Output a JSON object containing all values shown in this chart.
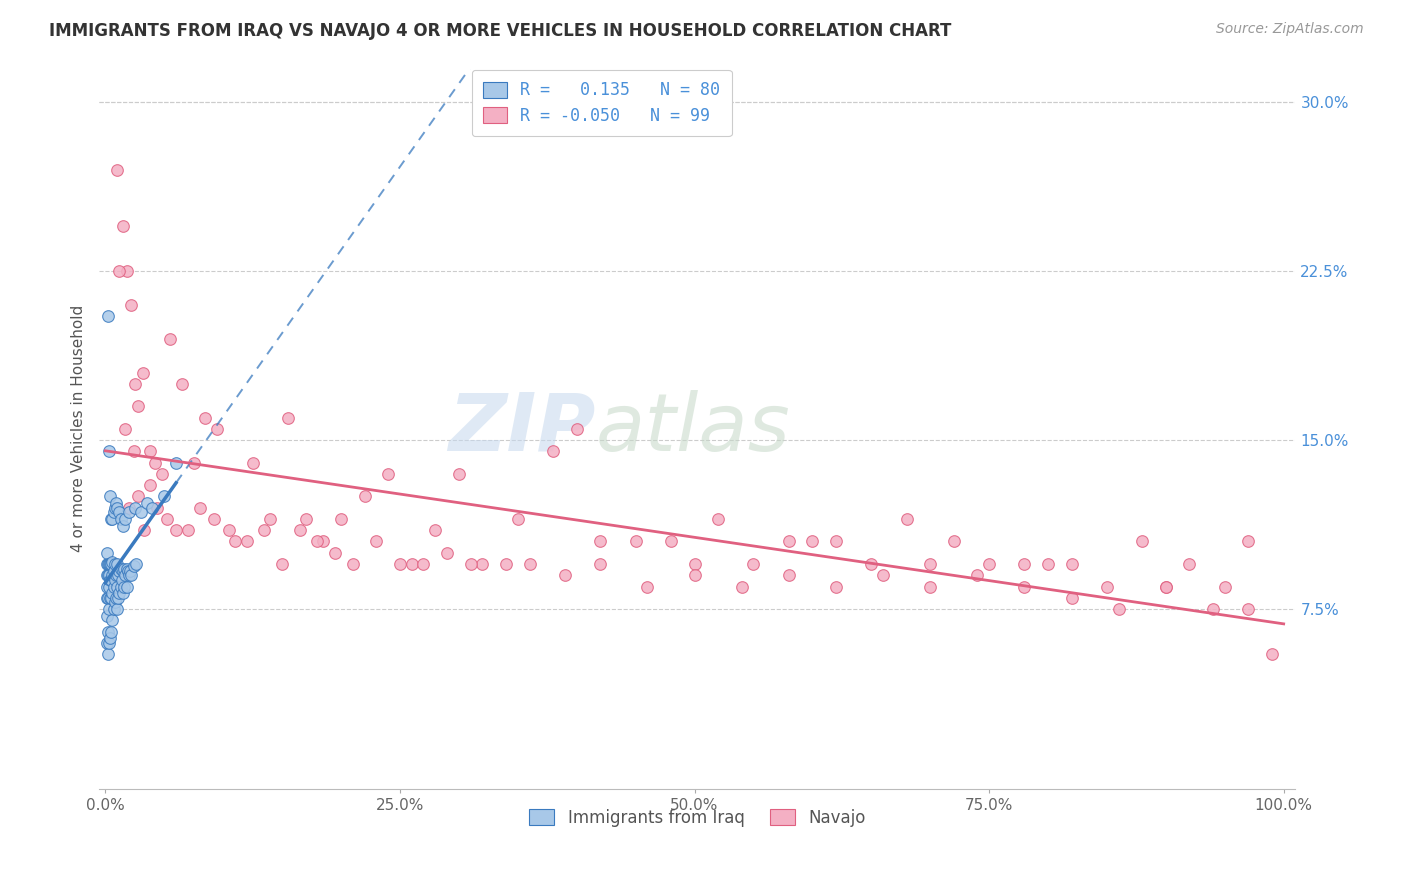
{
  "title": "IMMIGRANTS FROM IRAQ VS NAVAJO 4 OR MORE VEHICLES IN HOUSEHOLD CORRELATION CHART",
  "source": "Source: ZipAtlas.com",
  "ylabel": "4 or more Vehicles in Household",
  "ytick_vals": [
    0.075,
    0.15,
    0.225,
    0.3
  ],
  "legend1_label": "Immigrants from Iraq",
  "legend2_label": "Navajo",
  "r1": 0.135,
  "n1": 80,
  "r2": -0.05,
  "n2": 99,
  "color_iraq": "#a8c8e8",
  "color_navajo": "#f4b0c4",
  "color_iraq_line": "#3a7abf",
  "color_navajo_line": "#e06080",
  "watermark_zip": "ZIP",
  "watermark_atlas": "atlas",
  "background_color": "#ffffff",
  "iraq_x": [
    0.001,
    0.001,
    0.001,
    0.001,
    0.001,
    0.001,
    0.001,
    0.002,
    0.002,
    0.002,
    0.002,
    0.002,
    0.003,
    0.003,
    0.003,
    0.003,
    0.003,
    0.004,
    0.004,
    0.004,
    0.004,
    0.005,
    0.005,
    0.005,
    0.005,
    0.006,
    0.006,
    0.006,
    0.006,
    0.007,
    0.007,
    0.007,
    0.008,
    0.008,
    0.008,
    0.009,
    0.009,
    0.01,
    0.01,
    0.01,
    0.011,
    0.011,
    0.012,
    0.012,
    0.013,
    0.013,
    0.014,
    0.015,
    0.015,
    0.016,
    0.016,
    0.017,
    0.018,
    0.018,
    0.019,
    0.02,
    0.021,
    0.022,
    0.024,
    0.026,
    0.002,
    0.003,
    0.004,
    0.005,
    0.006,
    0.007,
    0.008,
    0.009,
    0.01,
    0.012,
    0.013,
    0.015,
    0.017,
    0.02,
    0.025,
    0.03,
    0.035,
    0.04,
    0.05,
    0.06
  ],
  "iraq_y": [
    0.06,
    0.072,
    0.08,
    0.085,
    0.09,
    0.095,
    0.1,
    0.055,
    0.065,
    0.08,
    0.09,
    0.095,
    0.06,
    0.075,
    0.085,
    0.09,
    0.095,
    0.062,
    0.08,
    0.088,
    0.095,
    0.065,
    0.08,
    0.088,
    0.095,
    0.07,
    0.082,
    0.09,
    0.096,
    0.075,
    0.085,
    0.092,
    0.078,
    0.088,
    0.095,
    0.08,
    0.09,
    0.075,
    0.085,
    0.095,
    0.08,
    0.09,
    0.082,
    0.092,
    0.085,
    0.093,
    0.088,
    0.082,
    0.092,
    0.085,
    0.093,
    0.09,
    0.085,
    0.093,
    0.092,
    0.09,
    0.092,
    0.09,
    0.094,
    0.095,
    0.205,
    0.145,
    0.125,
    0.115,
    0.115,
    0.118,
    0.12,
    0.122,
    0.12,
    0.118,
    0.115,
    0.112,
    0.115,
    0.118,
    0.12,
    0.118,
    0.122,
    0.12,
    0.125,
    0.14
  ],
  "navajo_x": [
    0.01,
    0.015,
    0.018,
    0.022,
    0.025,
    0.028,
    0.032,
    0.038,
    0.042,
    0.048,
    0.055,
    0.065,
    0.075,
    0.085,
    0.095,
    0.11,
    0.125,
    0.14,
    0.155,
    0.17,
    0.185,
    0.2,
    0.22,
    0.24,
    0.26,
    0.28,
    0.3,
    0.32,
    0.35,
    0.38,
    0.4,
    0.42,
    0.45,
    0.48,
    0.5,
    0.52,
    0.55,
    0.58,
    0.6,
    0.62,
    0.65,
    0.68,
    0.7,
    0.72,
    0.75,
    0.78,
    0.8,
    0.82,
    0.85,
    0.88,
    0.9,
    0.92,
    0.95,
    0.97,
    0.012,
    0.017,
    0.02,
    0.024,
    0.028,
    0.033,
    0.038,
    0.044,
    0.052,
    0.06,
    0.07,
    0.08,
    0.092,
    0.105,
    0.12,
    0.135,
    0.15,
    0.165,
    0.18,
    0.195,
    0.21,
    0.23,
    0.25,
    0.27,
    0.29,
    0.31,
    0.34,
    0.36,
    0.39,
    0.42,
    0.46,
    0.5,
    0.54,
    0.58,
    0.62,
    0.66,
    0.7,
    0.74,
    0.78,
    0.82,
    0.86,
    0.9,
    0.94,
    0.97,
    0.99
  ],
  "navajo_y": [
    0.27,
    0.245,
    0.225,
    0.21,
    0.175,
    0.165,
    0.18,
    0.145,
    0.14,
    0.135,
    0.195,
    0.175,
    0.14,
    0.16,
    0.155,
    0.105,
    0.14,
    0.115,
    0.16,
    0.115,
    0.105,
    0.115,
    0.125,
    0.135,
    0.095,
    0.11,
    0.135,
    0.095,
    0.115,
    0.145,
    0.155,
    0.105,
    0.105,
    0.105,
    0.095,
    0.115,
    0.095,
    0.105,
    0.105,
    0.105,
    0.095,
    0.115,
    0.095,
    0.105,
    0.095,
    0.095,
    0.095,
    0.095,
    0.085,
    0.105,
    0.085,
    0.095,
    0.085,
    0.105,
    0.225,
    0.155,
    0.12,
    0.145,
    0.125,
    0.11,
    0.13,
    0.12,
    0.115,
    0.11,
    0.11,
    0.12,
    0.115,
    0.11,
    0.105,
    0.11,
    0.095,
    0.11,
    0.105,
    0.1,
    0.095,
    0.105,
    0.095,
    0.095,
    0.1,
    0.095,
    0.095,
    0.095,
    0.09,
    0.095,
    0.085,
    0.09,
    0.085,
    0.09,
    0.085,
    0.09,
    0.085,
    0.09,
    0.085,
    0.08,
    0.075,
    0.085,
    0.075,
    0.075,
    0.055
  ]
}
